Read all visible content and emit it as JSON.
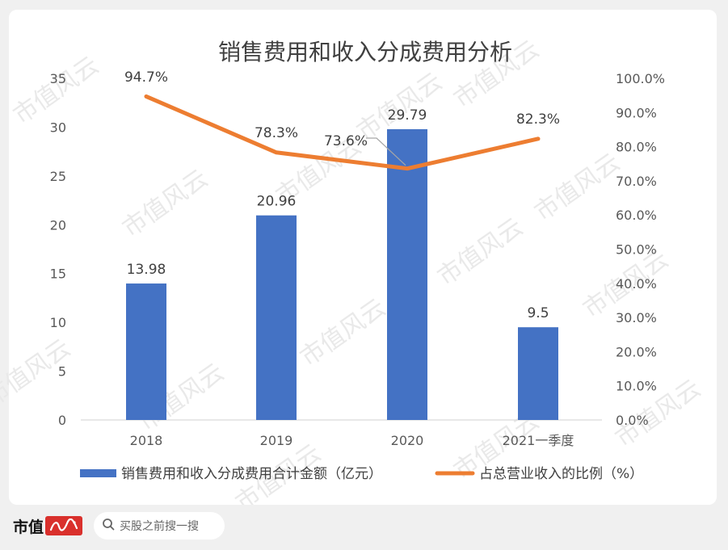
{
  "watermark": {
    "text": "市值风云"
  },
  "chart_data": {
    "type": "bar+line",
    "title": "销售费用和收入分成费用分析",
    "categories": [
      "2018",
      "2019",
      "2020",
      "2021一季度"
    ],
    "series": [
      {
        "name": "销售费用和收入分成费用合计金额（亿元）",
        "type": "bar",
        "axis": "left",
        "color": "#4472c4",
        "values": [
          13.98,
          20.96,
          29.79,
          9.5
        ],
        "labels": [
          "13.98",
          "20.96",
          "29.79",
          "9.5"
        ]
      },
      {
        "name": "占总营业收入的比例（%）",
        "type": "line",
        "axis": "right",
        "color": "#ed7d31",
        "values": [
          94.7,
          78.3,
          73.6,
          82.3
        ],
        "labels": [
          "94.7%",
          "78.3%",
          "73.6%",
          "82.3%"
        ]
      }
    ],
    "y_left": {
      "min": 0,
      "max": 35,
      "step": 5,
      "ticks": [
        "0",
        "5",
        "10",
        "15",
        "20",
        "25",
        "30",
        "35"
      ]
    },
    "y_right": {
      "min": 0,
      "max": 100,
      "step": 10,
      "ticks": [
        "0.0%",
        "10.0%",
        "20.0%",
        "30.0%",
        "40.0%",
        "50.0%",
        "60.0%",
        "70.0%",
        "80.0%",
        "90.0%",
        "100.0%"
      ]
    },
    "grid": false,
    "legend_position": "bottom"
  },
  "footer": {
    "brand": "市值",
    "search_placeholder": "买股之前搜一搜"
  }
}
